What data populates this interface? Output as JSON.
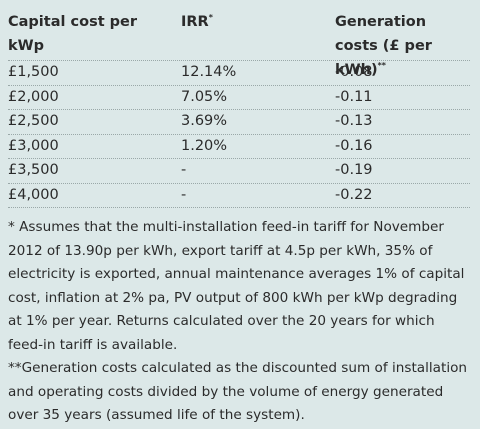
{
  "table": {
    "headers": {
      "capital_cost": "Capital cost per kWp",
      "irr": "IRR",
      "irr_mark": "*",
      "generation_costs": "Generation costs (£ per kWh)",
      "generation_mark": "**"
    },
    "rows": [
      {
        "capital_cost": "£1,500",
        "irr": "12.14%",
        "generation_cost": "-0.08"
      },
      {
        "capital_cost": "£2,000",
        "irr": "7.05%",
        "generation_cost": "-0.11"
      },
      {
        "capital_cost": "£2,500",
        "irr": "3.69%",
        "generation_cost": "-0.13"
      },
      {
        "capital_cost": "£3,000",
        "irr": "1.20%",
        "generation_cost": "-0.16"
      },
      {
        "capital_cost": "£3,500",
        "irr": "-",
        "generation_cost": "-0.19"
      },
      {
        "capital_cost": "£4,000",
        "irr": "-",
        "generation_cost": "-0.22"
      }
    ]
  },
  "notes": {
    "note1": "* Assumes that the multi-installation feed-in tariff for November 2012 of 13.90p per kWh, export tariff at 4.5p per kWh, 35% of electricity is exported, annual maintenance averages 1% of capital cost, inflation at 2% pa, PV output of 800 kWh per kWp degrading at 1% per year.  Returns calculated over the 20 years for which feed-in tariff is available.",
    "note2": "**Generation costs calculated as the discounted sum of installation and operating costs divided by the volume of energy generated over 35 years (assumed life of the system)."
  }
}
